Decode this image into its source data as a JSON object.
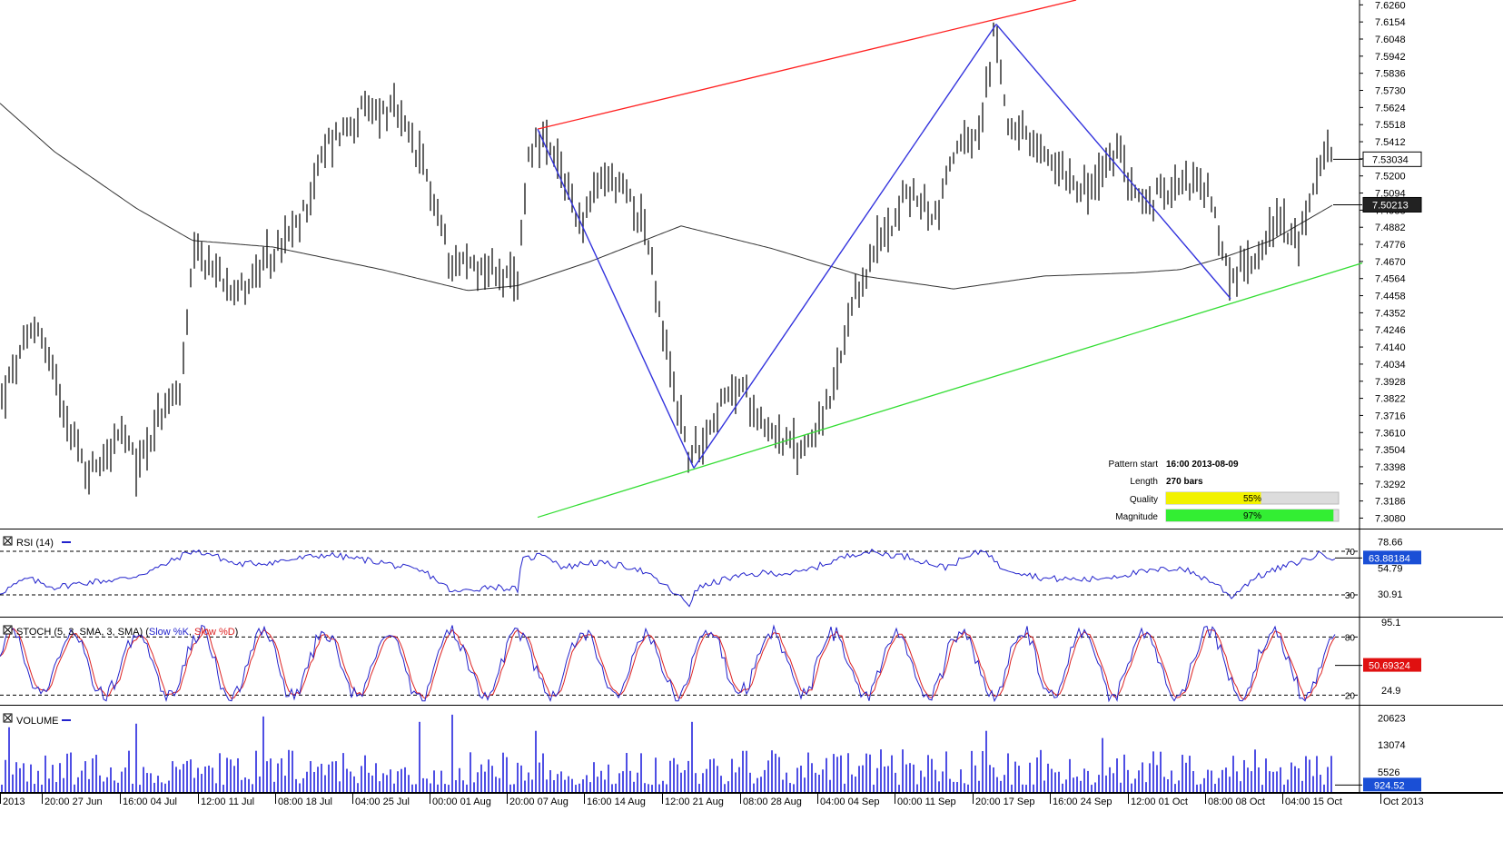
{
  "panels": {
    "rsi": {
      "label": "RSI (14)"
    },
    "stoch": {
      "label": "STOCH (5, 3, SMA, 3, SMA)",
      "label_prefix": "STOCH (5, 3, SMA, 3, SMA) (",
      "k_label": "Slow %K",
      "sep": ", ",
      "d_label": "Slow %D",
      "label_suffix": ")"
    },
    "volume": {
      "label": "VOLUME"
    }
  },
  "pattern_info": {
    "start_label": "Pattern start",
    "start_value": "16:00 2013-08-09",
    "length_label": "Length",
    "length_value": "270 bars",
    "quality_label": "Quality",
    "quality_text": "55%",
    "quality_fraction": 0.55,
    "magnitude_label": "Magnitude",
    "magnitude_text": "97%",
    "magnitude_fraction": 0.97
  },
  "colors": {
    "price_bars": "#111111",
    "moving_average": "#333333",
    "pattern_lines": "#3333dd",
    "resistance_line": "#ff2020",
    "support_line": "#33dd33",
    "rsi": "#2222cc",
    "stoch_k": "#2222cc",
    "stoch_d": "#dd2222",
    "volume": "#2323dd",
    "quality_bar": "#f2f200",
    "magnitude_bar": "#33ee33"
  },
  "chart_data": [
    {
      "type": "ohlc",
      "panel": "price",
      "y_ticks": [
        "7.6260",
        "7.6154",
        "7.6048",
        "7.5942",
        "7.5836",
        "7.5730",
        "7.5624",
        "7.5518",
        "7.5412",
        "7.5306",
        "7.5200",
        "7.5094",
        "7.4988",
        "7.4882",
        "7.4776",
        "7.4670",
        "7.4564",
        "7.4458",
        "7.4352",
        "7.4246",
        "7.4140",
        "7.4034",
        "7.3928",
        "7.3822",
        "7.3716",
        "7.3610",
        "7.3504",
        "7.3398",
        "7.3292",
        "7.3186",
        "7.3080"
      ],
      "ylim": [
        7.3015,
        7.629
      ],
      "current_price": "7.53034",
      "current_price_value": 7.53034,
      "moving_average_value": "7.50213",
      "moving_average_last": 7.50213,
      "price_key_points": [
        [
          0,
          7.38
        ],
        [
          40,
          7.43
        ],
        [
          95,
          7.335
        ],
        [
          135,
          7.36
        ],
        [
          150,
          7.34
        ],
        [
          175,
          7.37
        ],
        [
          200,
          7.39
        ],
        [
          213,
          7.47
        ],
        [
          240,
          7.46
        ],
        [
          265,
          7.45
        ],
        [
          285,
          7.46
        ],
        [
          330,
          7.49
        ],
        [
          360,
          7.54
        ],
        [
          400,
          7.56
        ],
        [
          435,
          7.56
        ],
        [
          470,
          7.52
        ],
        [
          495,
          7.47
        ],
        [
          520,
          7.465
        ],
        [
          550,
          7.46
        ],
        [
          570,
          7.45
        ],
        [
          580,
          7.53
        ],
        [
          593,
          7.545
        ],
        [
          620,
          7.52
        ],
        [
          640,
          7.49
        ],
        [
          665,
          7.52
        ],
        [
          690,
          7.51
        ],
        [
          710,
          7.49
        ],
        [
          730,
          7.42
        ],
        [
          760,
          7.343
        ],
        [
          790,
          7.375
        ],
        [
          815,
          7.39
        ],
        [
          845,
          7.365
        ],
        [
          880,
          7.348
        ],
        [
          915,
          7.38
        ],
        [
          940,
          7.44
        ],
        [
          960,
          7.47
        ],
        [
          1000,
          7.51
        ],
        [
          1030,
          7.495
        ],
        [
          1050,
          7.535
        ],
        [
          1080,
          7.545
        ],
        [
          1095,
          7.61
        ],
        [
          1110,
          7.555
        ],
        [
          1140,
          7.535
        ],
        [
          1170,
          7.525
        ],
        [
          1200,
          7.51
        ],
        [
          1230,
          7.535
        ],
        [
          1260,
          7.5
        ],
        [
          1300,
          7.52
        ],
        [
          1330,
          7.51
        ],
        [
          1355,
          7.455
        ],
        [
          1380,
          7.47
        ],
        [
          1410,
          7.495
        ],
        [
          1430,
          7.475
        ],
        [
          1455,
          7.535
        ],
        [
          1468,
          7.53
        ]
      ],
      "moving_average": [
        [
          0,
          7.565
        ],
        [
          60,
          7.535
        ],
        [
          150,
          7.5
        ],
        [
          212,
          7.48
        ],
        [
          300,
          7.476
        ],
        [
          420,
          7.462
        ],
        [
          515,
          7.449
        ],
        [
          570,
          7.452
        ],
        [
          650,
          7.467
        ],
        [
          750,
          7.489
        ],
        [
          850,
          7.475
        ],
        [
          950,
          7.458
        ],
        [
          1050,
          7.45
        ],
        [
          1150,
          7.458
        ],
        [
          1250,
          7.46
        ],
        [
          1300,
          7.462
        ],
        [
          1350,
          7.47
        ],
        [
          1400,
          7.48
        ],
        [
          1468,
          7.50213
        ]
      ],
      "pattern_lines": [
        [
          592,
          7.549
        ],
        [
          764,
          7.339
        ],
        [
          1097,
          7.614
        ],
        [
          1355,
          7.444
        ]
      ],
      "resistance_line": [
        [
          592,
          7.549
        ],
        [
          1185,
          7.629
        ]
      ],
      "support_line": [
        [
          592,
          7.3085
        ],
        [
          1500,
          7.466
        ]
      ]
    },
    {
      "type": "line",
      "panel": "rsi",
      "name": "RSI (14)",
      "ylim": [
        10,
        90
      ],
      "levels": [
        70,
        30
      ],
      "level_labels": [
        "70",
        "30"
      ],
      "y_ticks": [
        "78.66",
        "54.79",
        "30.91"
      ],
      "current_value": "63.88184",
      "key_points": [
        [
          0,
          32
        ],
        [
          30,
          45
        ],
        [
          60,
          37
        ],
        [
          100,
          42
        ],
        [
          140,
          45
        ],
        [
          175,
          55
        ],
        [
          210,
          70
        ],
        [
          230,
          68
        ],
        [
          260,
          58
        ],
        [
          300,
          60
        ],
        [
          360,
          67
        ],
        [
          420,
          60
        ],
        [
          470,
          50
        ],
        [
          500,
          32
        ],
        [
          540,
          38
        ],
        [
          570,
          35
        ],
        [
          575,
          62
        ],
        [
          600,
          68
        ],
        [
          620,
          55
        ],
        [
          650,
          60
        ],
        [
          700,
          55
        ],
        [
          730,
          40
        ],
        [
          760,
          20
        ],
        [
          765,
          35
        ],
        [
          800,
          45
        ],
        [
          840,
          50
        ],
        [
          880,
          50
        ],
        [
          920,
          62
        ],
        [
          950,
          70
        ],
        [
          1000,
          65
        ],
        [
          1040,
          55
        ],
        [
          1085,
          72
        ],
        [
          1100,
          56
        ],
        [
          1150,
          45
        ],
        [
          1200,
          44
        ],
        [
          1250,
          50
        ],
        [
          1300,
          55
        ],
        [
          1340,
          40
        ],
        [
          1355,
          28
        ],
        [
          1380,
          45
        ],
        [
          1410,
          55
        ],
        [
          1440,
          63
        ],
        [
          1455,
          68
        ],
        [
          1470,
          64
        ]
      ]
    },
    {
      "type": "line",
      "panel": "stoch",
      "name": "STOCH (5, 3, SMA, 3, SMA)",
      "ylim": [
        10,
        100
      ],
      "levels": [
        80,
        20
      ],
      "level_labels": [
        "80",
        "20"
      ],
      "y_ticks": [
        "95.1",
        "24.9"
      ],
      "current_value": "50.69324",
      "oscillation_period_bars": 24,
      "low_range": [
        15,
        30
      ],
      "high_range": [
        65,
        90
      ]
    },
    {
      "type": "bar",
      "panel": "volume",
      "name": "VOLUME",
      "ylim": [
        0,
        24000
      ],
      "y_ticks": [
        "20623",
        "13074",
        "5526"
      ],
      "current_value": "924.52",
      "typical_range": [
        2000,
        12000
      ],
      "spikes": [
        [
          10,
          18000
        ],
        [
          150,
          19000
        ],
        [
          290,
          21000
        ],
        [
          465,
          19500
        ],
        [
          500,
          21500
        ],
        [
          590,
          17000
        ],
        [
          765,
          19500
        ],
        [
          1087,
          17000
        ],
        [
          1215,
          15000
        ],
        [
          1452,
          10000
        ]
      ]
    }
  ],
  "x_axis": {
    "labels": [
      "2013",
      "20:00 27 Jun",
      "16:00 04 Jul",
      "12:00 11 Jul",
      "08:00 18 Jul",
      "04:00 25 Jul",
      "00:00 01 Aug",
      "20:00 07 Aug",
      "16:00 14 Aug",
      "12:00 21 Aug",
      "08:00 28 Aug",
      "04:00 04 Sep",
      "00:00 11 Sep",
      "20:00 17 Sep",
      "16:00 24 Sep",
      "12:00 01 Oct",
      "08:00 08 Oct",
      "04:00 15 Oct",
      "Oct 2013"
    ]
  }
}
